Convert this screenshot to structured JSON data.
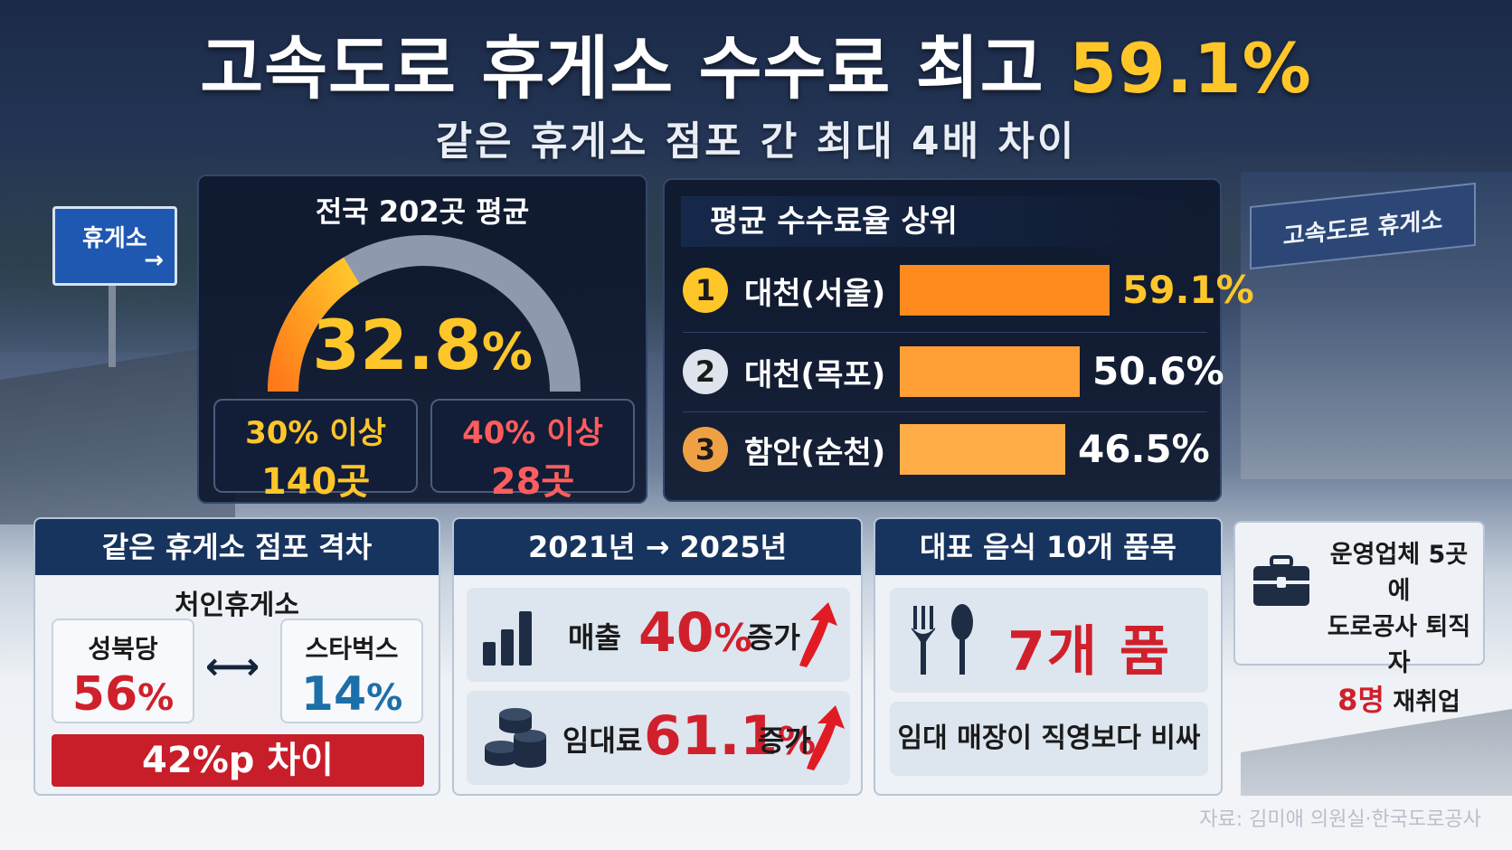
{
  "title": {
    "main": "고속도로 휴게소 수수료 최고",
    "highlight": "59.1%"
  },
  "subtitle": "같은 휴게소 점포 간 최대 4배 차이",
  "background": {
    "left_sign": "휴게소",
    "left_sign_arrow": "→",
    "building_sign": "고속도로 휴게소"
  },
  "average": {
    "title": "전국 202곳 평균",
    "value": "32.8",
    "unit": "%",
    "gauge_fraction": 0.328,
    "boxes": [
      {
        "label": "30% 이상",
        "count": "140곳",
        "color": "#ffc62a"
      },
      {
        "label": "40% 이상",
        "count": "28곳",
        "color": "#ff5d5d"
      }
    ]
  },
  "ranking": {
    "title": "평균 수수료율 상위",
    "items": [
      {
        "rank": "1",
        "name": "대천(서울)",
        "value": 59.1,
        "label": "59.1%",
        "badge_color": "#ffc62a",
        "bar_color": "#ff8a1e",
        "value_color": "#ffc62a"
      },
      {
        "rank": "2",
        "name": "대천(목포)",
        "value": 50.6,
        "label": "50.6%",
        "badge_color": "#dfe4ec",
        "bar_color": "#ff9f35",
        "value_color": "#ffffff"
      },
      {
        "rank": "3",
        "name": "함안(순천)",
        "value": 46.5,
        "label": "46.5%",
        "badge_color": "#f0a044",
        "bar_color": "#ffad46",
        "value_color": "#ffffff"
      }
    ]
  },
  "gap": {
    "title": "같은 휴게소 점포 격차",
    "location": "처인휴게소",
    "left": {
      "name": "성북당",
      "value": "56",
      "unit": "%"
    },
    "right": {
      "name": "스타벅스",
      "value": "14",
      "unit": "%"
    },
    "arrow": "⟷",
    "diff": "42%p 차이"
  },
  "trend": {
    "title": "2021년 → 2025년",
    "rows": [
      {
        "label": "매출",
        "value": "40",
        "unit": "%",
        "suffix": "증가"
      },
      {
        "label": "임대료",
        "value": "61.1",
        "unit": "%",
        "suffix": "증가"
      }
    ]
  },
  "food": {
    "title": "대표 음식 10개 품목",
    "value": "7개 품목",
    "note": "임대 매장이 직영보다 비싸"
  },
  "reemploy": {
    "line1": "운영업체 5곳에",
    "line2": "도로공사 퇴직자",
    "count": "8명",
    "line3_suffix": "재취업"
  },
  "source": "자료: 김미애 의원실·한국도로공사"
}
